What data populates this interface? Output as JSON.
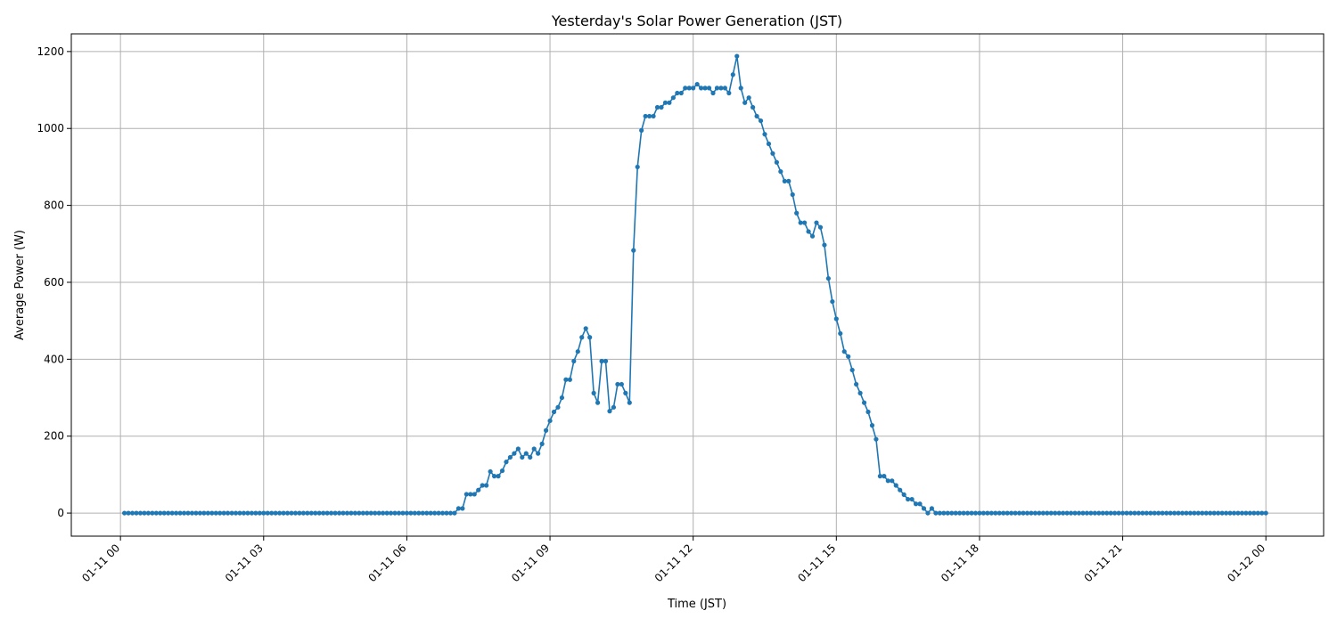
{
  "chart_data": {
    "type": "line",
    "title": "Yesterday's Solar Power Generation (JST)",
    "xlabel": "Time (JST)",
    "ylabel": "Average Power (W)",
    "x_start": "01-11 00:05",
    "x_step_minutes": 5,
    "xlim": [
      "01-10 22:58",
      "01-12 01:13"
    ],
    "ylim": [
      -60,
      1246
    ],
    "x_ticks": [
      "01-11 00",
      "01-11 03",
      "01-11 06",
      "01-11 09",
      "01-11 12",
      "01-11 15",
      "01-11 18",
      "01-11 21",
      "01-12 00"
    ],
    "y_ticks": [
      0,
      200,
      400,
      600,
      800,
      1000,
      1200
    ],
    "grid": true,
    "marker": "dot",
    "color": "#1f77b4",
    "values": [
      0,
      0,
      0,
      0,
      0,
      0,
      0,
      0,
      0,
      0,
      0,
      0,
      0,
      0,
      0,
      0,
      0,
      0,
      0,
      0,
      0,
      0,
      0,
      0,
      0,
      0,
      0,
      0,
      0,
      0,
      0,
      0,
      0,
      0,
      0,
      0,
      0,
      0,
      0,
      0,
      0,
      0,
      0,
      0,
      0,
      0,
      0,
      0,
      0,
      0,
      0,
      0,
      0,
      0,
      0,
      0,
      0,
      0,
      0,
      0,
      0,
      0,
      0,
      0,
      0,
      0,
      0,
      0,
      0,
      0,
      0,
      0,
      0,
      0,
      0,
      0,
      0,
      0,
      0,
      0,
      0,
      0,
      0,
      0,
      12,
      12,
      49,
      49,
      49,
      60,
      72,
      72,
      108,
      96,
      96,
      110,
      133,
      145,
      155,
      167,
      145,
      155,
      145,
      167,
      155,
      180,
      215,
      240,
      263,
      275,
      300,
      347,
      347,
      395,
      420,
      457,
      480,
      457,
      312,
      287,
      395,
      395,
      265,
      275,
      335,
      335,
      312,
      287,
      683,
      900,
      995,
      1032,
      1032,
      1032,
      1055,
      1055,
      1067,
      1067,
      1080,
      1092,
      1092,
      1105,
      1105,
      1105,
      1115,
      1105,
      1105,
      1105,
      1092,
      1105,
      1105,
      1105,
      1092,
      1140,
      1188,
      1105,
      1067,
      1080,
      1055,
      1032,
      1020,
      985,
      960,
      935,
      912,
      888,
      863,
      863,
      828,
      780,
      755,
      755,
      732,
      720,
      755,
      743,
      697,
      610,
      550,
      505,
      467,
      420,
      407,
      372,
      335,
      312,
      287,
      263,
      228,
      192,
      96,
      96,
      84,
      84,
      72,
      60,
      48,
      36,
      36,
      24,
      24,
      12,
      0,
      12,
      0,
      0,
      0,
      0,
      0,
      0,
      0,
      0,
      0,
      0,
      0,
      0,
      0,
      0,
      0,
      0,
      0,
      0,
      0,
      0,
      0,
      0,
      0,
      0,
      0,
      0,
      0,
      0,
      0,
      0,
      0,
      0,
      0,
      0,
      0,
      0,
      0,
      0,
      0,
      0,
      0,
      0,
      0,
      0,
      0,
      0,
      0,
      0,
      0,
      0,
      0,
      0,
      0,
      0,
      0,
      0,
      0,
      0,
      0,
      0,
      0,
      0,
      0,
      0,
      0,
      0,
      0,
      0,
      0,
      0,
      0,
      0,
      0,
      0,
      0,
      0,
      0,
      0,
      0,
      0,
      0,
      0,
      0,
      0
    ]
  }
}
